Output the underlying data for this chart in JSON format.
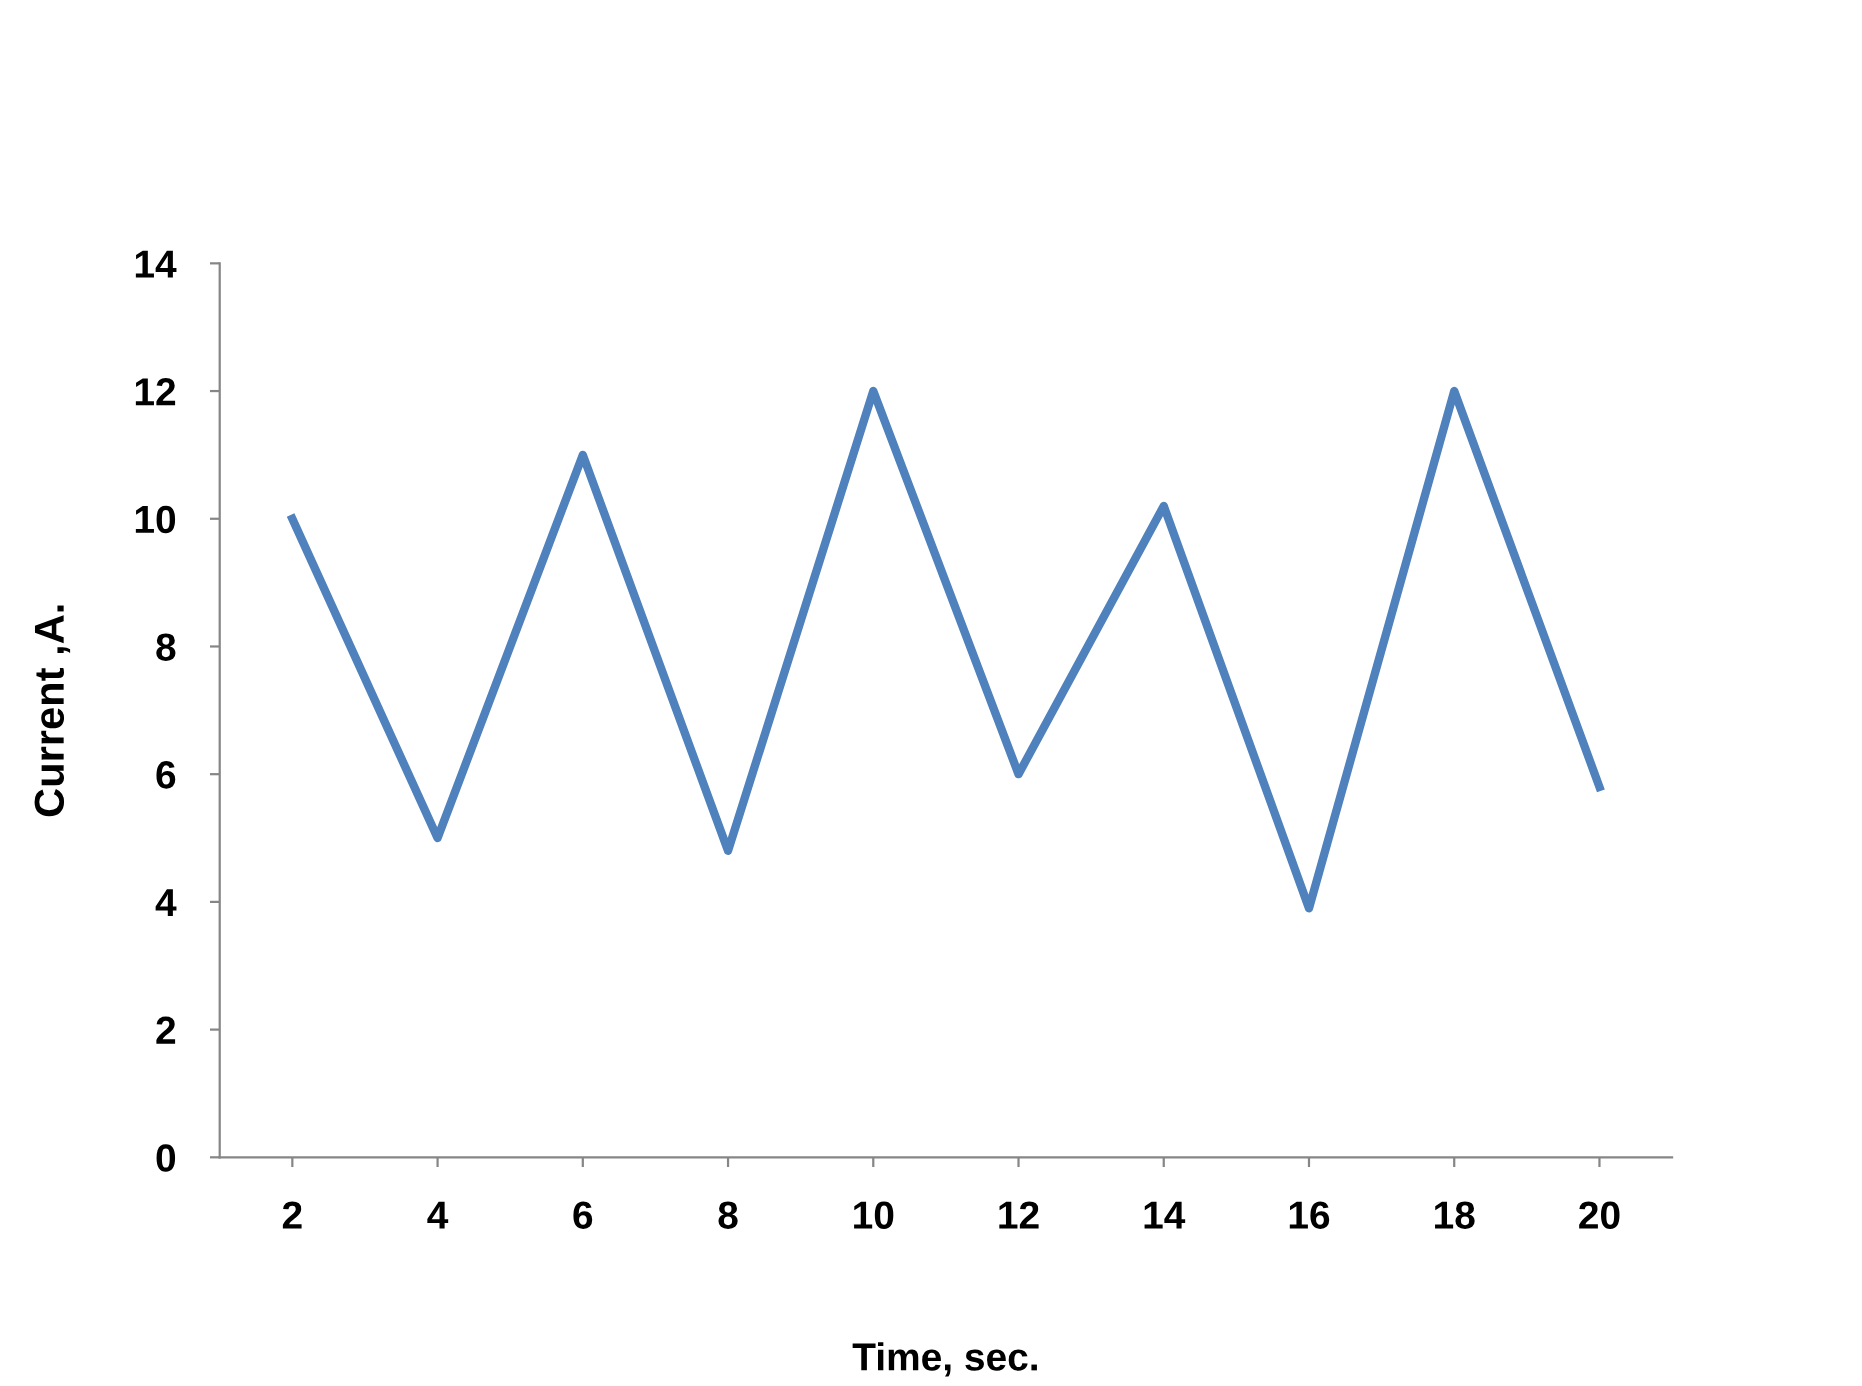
{
  "chart_data": {
    "type": "line",
    "xlabel": "Time, sec.",
    "ylabel": "Current ,A.",
    "categories": [
      "2",
      "4",
      "6",
      "8",
      "10",
      "12",
      "14",
      "16",
      "18",
      "20"
    ],
    "series": [
      {
        "color": "#4f81bd",
        "values": [
          10,
          5,
          11,
          4.8,
          12,
          6,
          10.2,
          3.9,
          12,
          5.8
        ]
      }
    ],
    "ylim": [
      0,
      14
    ],
    "yticks": [
      0,
      2,
      4,
      6,
      8,
      10,
      12,
      14
    ],
    "grid": false,
    "legend": false,
    "marker": "none",
    "line_style": "solid"
  }
}
